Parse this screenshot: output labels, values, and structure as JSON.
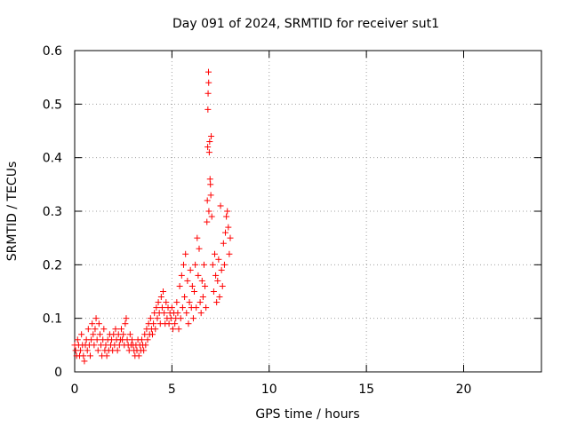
{
  "chart_data": {
    "type": "scatter",
    "title": "Day 091 of 2024, SRMTID for receiver sut1",
    "xlabel": "GPS time / hours",
    "ylabel": "SRMTID / TECUs",
    "xlim": [
      0,
      24
    ],
    "ylim": [
      0,
      0.6
    ],
    "xticks": [
      0,
      5,
      10,
      15,
      20
    ],
    "xtick_labels": [
      "0",
      "5",
      "10",
      "15",
      "20"
    ],
    "yticks": [
      0,
      0.1,
      0.2,
      0.3,
      0.4,
      0.5,
      0.6
    ],
    "ytick_labels": [
      "0",
      "0.1",
      "0.2",
      "0.3",
      "0.4",
      "0.5",
      "0.6"
    ],
    "grid": true,
    "marker": "+",
    "marker_color": "#ff0000",
    "series": [
      {
        "name": "SRMTID",
        "color": "#ff0000",
        "points": [
          [
            0.0,
            0.05
          ],
          [
            0.05,
            0.04
          ],
          [
            0.1,
            0.03
          ],
          [
            0.15,
            0.06
          ],
          [
            0.2,
            0.05
          ],
          [
            0.25,
            0.03
          ],
          [
            0.3,
            0.04
          ],
          [
            0.35,
            0.07
          ],
          [
            0.4,
            0.05
          ],
          [
            0.45,
            0.03
          ],
          [
            0.5,
            0.02
          ],
          [
            0.55,
            0.05
          ],
          [
            0.6,
            0.06
          ],
          [
            0.65,
            0.04
          ],
          [
            0.7,
            0.08
          ],
          [
            0.75,
            0.05
          ],
          [
            0.8,
            0.03
          ],
          [
            0.85,
            0.06
          ],
          [
            0.9,
            0.09
          ],
          [
            0.95,
            0.07
          ],
          [
            1.0,
            0.05
          ],
          [
            1.05,
            0.08
          ],
          [
            1.1,
            0.1
          ],
          [
            1.15,
            0.06
          ],
          [
            1.2,
            0.04
          ],
          [
            1.25,
            0.09
          ],
          [
            1.3,
            0.07
          ],
          [
            1.35,
            0.05
          ],
          [
            1.4,
            0.03
          ],
          [
            1.45,
            0.06
          ],
          [
            1.5,
            0.08
          ],
          [
            1.55,
            0.04
          ],
          [
            1.6,
            0.05
          ],
          [
            1.65,
            0.03
          ],
          [
            1.7,
            0.06
          ],
          [
            1.75,
            0.04
          ],
          [
            1.8,
            0.07
          ],
          [
            1.85,
            0.05
          ],
          [
            1.9,
            0.06
          ],
          [
            1.95,
            0.04
          ],
          [
            2.0,
            0.07
          ],
          [
            2.05,
            0.05
          ],
          [
            2.1,
            0.08
          ],
          [
            2.15,
            0.06
          ],
          [
            2.2,
            0.04
          ],
          [
            2.25,
            0.07
          ],
          [
            2.3,
            0.05
          ],
          [
            2.35,
            0.06
          ],
          [
            2.4,
            0.08
          ],
          [
            2.45,
            0.06
          ],
          [
            2.5,
            0.07
          ],
          [
            2.55,
            0.05
          ],
          [
            2.6,
            0.09
          ],
          [
            2.65,
            0.1
          ],
          [
            2.7,
            0.06
          ],
          [
            2.75,
            0.05
          ],
          [
            2.8,
            0.04
          ],
          [
            2.85,
            0.07
          ],
          [
            2.9,
            0.05
          ],
          [
            2.95,
            0.06
          ],
          [
            3.0,
            0.05
          ],
          [
            3.05,
            0.04
          ],
          [
            3.1,
            0.03
          ],
          [
            3.15,
            0.05
          ],
          [
            3.2,
            0.04
          ],
          [
            3.25,
            0.06
          ],
          [
            3.3,
            0.03
          ],
          [
            3.35,
            0.05
          ],
          [
            3.4,
            0.04
          ],
          [
            3.45,
            0.06
          ],
          [
            3.5,
            0.05
          ],
          [
            3.55,
            0.04
          ],
          [
            3.6,
            0.07
          ],
          [
            3.65,
            0.05
          ],
          [
            3.7,
            0.08
          ],
          [
            3.75,
            0.06
          ],
          [
            3.8,
            0.09
          ],
          [
            3.85,
            0.07
          ],
          [
            3.9,
            0.1
          ],
          [
            3.95,
            0.08
          ],
          [
            4.0,
            0.07
          ],
          [
            4.05,
            0.09
          ],
          [
            4.1,
            0.11
          ],
          [
            4.15,
            0.08
          ],
          [
            4.2,
            0.12
          ],
          [
            4.25,
            0.1
          ],
          [
            4.3,
            0.13
          ],
          [
            4.35,
            0.11
          ],
          [
            4.4,
            0.09
          ],
          [
            4.45,
            0.14
          ],
          [
            4.5,
            0.12
          ],
          [
            4.55,
            0.15
          ],
          [
            4.6,
            0.11
          ],
          [
            4.65,
            0.09
          ],
          [
            4.7,
            0.13
          ],
          [
            4.75,
            0.1
          ],
          [
            4.8,
            0.12
          ],
          [
            4.85,
            0.09
          ],
          [
            4.9,
            0.11
          ],
          [
            4.95,
            0.1
          ],
          [
            5.0,
            0.12
          ],
          [
            5.05,
            0.08
          ],
          [
            5.1,
            0.11
          ],
          [
            5.15,
            0.09
          ],
          [
            5.2,
            0.1
          ],
          [
            5.25,
            0.13
          ],
          [
            5.3,
            0.11
          ],
          [
            5.35,
            0.08
          ],
          [
            5.4,
            0.16
          ],
          [
            5.45,
            0.1
          ],
          [
            5.5,
            0.18
          ],
          [
            5.55,
            0.12
          ],
          [
            5.6,
            0.2
          ],
          [
            5.65,
            0.14
          ],
          [
            5.7,
            0.22
          ],
          [
            5.75,
            0.11
          ],
          [
            5.8,
            0.17
          ],
          [
            5.85,
            0.09
          ],
          [
            5.9,
            0.13
          ],
          [
            5.95,
            0.19
          ],
          [
            6.0,
            0.12
          ],
          [
            6.05,
            0.16
          ],
          [
            6.1,
            0.1
          ],
          [
            6.15,
            0.15
          ],
          [
            6.2,
            0.2
          ],
          [
            6.25,
            0.12
          ],
          [
            6.3,
            0.25
          ],
          [
            6.35,
            0.18
          ],
          [
            6.4,
            0.23
          ],
          [
            6.45,
            0.13
          ],
          [
            6.5,
            0.11
          ],
          [
            6.55,
            0.17
          ],
          [
            6.6,
            0.14
          ],
          [
            6.65,
            0.2
          ],
          [
            6.7,
            0.16
          ],
          [
            6.75,
            0.12
          ],
          [
            6.8,
            0.28
          ],
          [
            6.82,
            0.32
          ],
          [
            6.84,
            0.42
          ],
          [
            6.85,
            0.49
          ],
          [
            6.86,
            0.52
          ],
          [
            6.88,
            0.56
          ],
          [
            6.89,
            0.54
          ],
          [
            6.9,
            0.3
          ],
          [
            6.92,
            0.41
          ],
          [
            6.94,
            0.43
          ],
          [
            6.96,
            0.36
          ],
          [
            6.98,
            0.35
          ],
          [
            7.0,
            0.33
          ],
          [
            7.02,
            0.44
          ],
          [
            7.05,
            0.29
          ],
          [
            7.1,
            0.2
          ],
          [
            7.15,
            0.15
          ],
          [
            7.2,
            0.22
          ],
          [
            7.25,
            0.18
          ],
          [
            7.3,
            0.13
          ],
          [
            7.35,
            0.17
          ],
          [
            7.4,
            0.21
          ],
          [
            7.45,
            0.14
          ],
          [
            7.5,
            0.31
          ],
          [
            7.55,
            0.19
          ],
          [
            7.6,
            0.16
          ],
          [
            7.65,
            0.24
          ],
          [
            7.7,
            0.2
          ],
          [
            7.75,
            0.26
          ],
          [
            7.8,
            0.29
          ],
          [
            7.85,
            0.3
          ],
          [
            7.9,
            0.27
          ],
          [
            7.95,
            0.22
          ],
          [
            8.0,
            0.25
          ]
        ]
      }
    ]
  }
}
